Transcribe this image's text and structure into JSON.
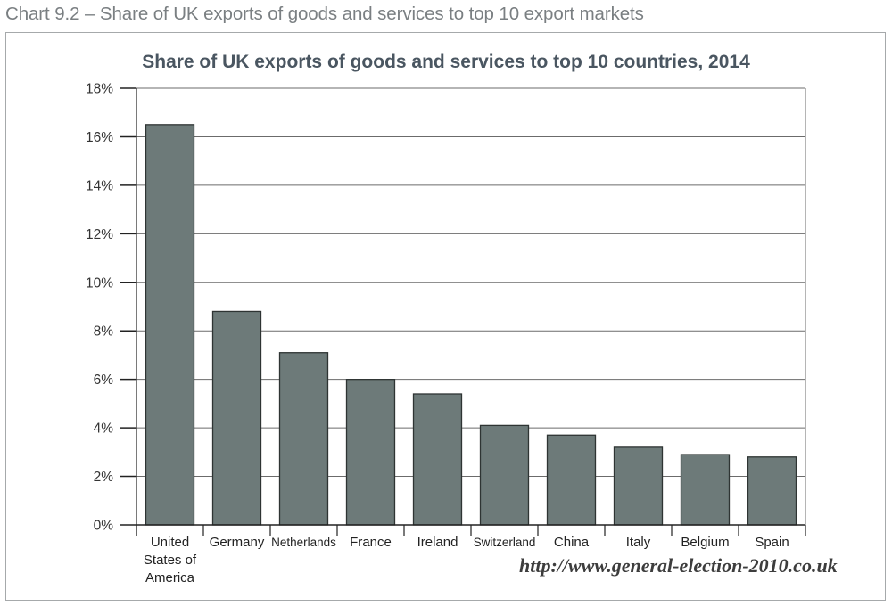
{
  "caption": "Chart 9.2 – Share of UK exports of goods and services to top 10 export markets",
  "watermark": "http://www.general-election-2010.co.uk",
  "colors": {
    "bar_fill": "#6d7a79",
    "bar_stroke": "#2e3433",
    "gridline": "#6b6b6b",
    "title": "#4a5661",
    "caption": "#7a7f82"
  },
  "chart_data": {
    "type": "bar",
    "title": "Share of UK exports of goods and services to top 10 countries, 2014",
    "xlabel": "",
    "ylabel": "",
    "categories": [
      "United States of America",
      "Germany",
      "Netherlands",
      "France",
      "Ireland",
      "Switzerland",
      "China",
      "Italy",
      "Belgium",
      "Spain"
    ],
    "category_label_lines": [
      [
        "United",
        "States of",
        "America"
      ],
      [
        "Germany"
      ],
      [
        "Netherlands"
      ],
      [
        "France"
      ],
      [
        "Ireland"
      ],
      [
        "Switzerland"
      ],
      [
        "China"
      ],
      [
        "Italy"
      ],
      [
        "Belgium"
      ],
      [
        "Spain"
      ]
    ],
    "values": [
      16.5,
      8.8,
      7.1,
      6.0,
      5.4,
      4.1,
      3.7,
      3.2,
      2.9,
      2.8
    ],
    "unit": "%",
    "ylim": [
      0,
      18
    ],
    "yticks": [
      0,
      2,
      4,
      6,
      8,
      10,
      12,
      14,
      16,
      18
    ],
    "ytick_labels": [
      "0%",
      "2%",
      "4%",
      "6%",
      "8%",
      "10%",
      "12%",
      "14%",
      "16%",
      "18%"
    ],
    "grid": true,
    "legend": null
  }
}
